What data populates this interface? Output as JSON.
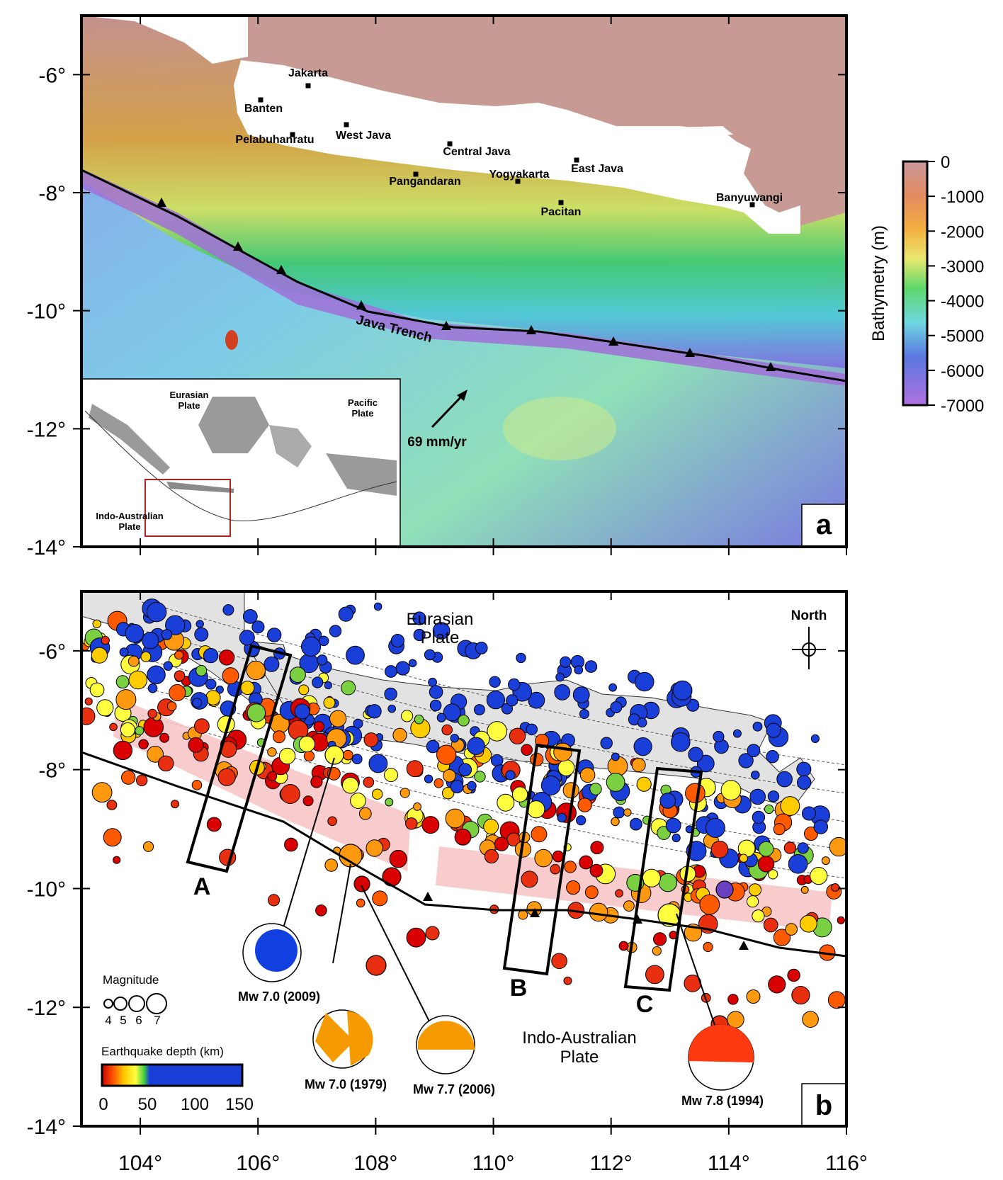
{
  "colors": {
    "land_bg": "#c89a94",
    "land_white": "#ffffff",
    "land_gray": "#e2e2e2",
    "trench_purple": "#a070d8",
    "shallow_red": "#cc2200",
    "deep_blue": "#1a3fd8",
    "pink_band": "#f7c3c3",
    "focal_orange": "#f59a00",
    "focal_red": "#ff3a10",
    "focal_blue": "#1240e0"
  },
  "axes": {
    "lon_ticks": [
      "104°",
      "106°",
      "108°",
      "110°",
      "112°",
      "114°",
      "116°"
    ],
    "lat_ticks_a": [
      "-6°",
      "-8°",
      "-10°",
      "-12°",
      "-14°"
    ],
    "lat_ticks_b": [
      "-6°",
      "-8°",
      "-10°",
      "-12°",
      "-14°"
    ],
    "lon_range": [
      103,
      116
    ],
    "lat_range_a": [
      -14,
      -5
    ],
    "lat_range_b": [
      -14,
      -5
    ]
  },
  "panel_a": {
    "label": "a",
    "cities": [
      {
        "name": "Jakarta"
      },
      {
        "name": "Banten"
      },
      {
        "name": "West Java"
      },
      {
        "name": "Pelabuhanratu"
      },
      {
        "name": "Central Java"
      },
      {
        "name": "Pangandaran"
      },
      {
        "name": "Yogyakarta"
      },
      {
        "name": "East Java"
      },
      {
        "name": "Pacitan"
      },
      {
        "name": "Banyuwangi"
      }
    ],
    "trench_label": "Java Trench",
    "velocity_label": "69 mm/yr",
    "inset": {
      "eurasian": [
        "Eurasian",
        "Plate"
      ],
      "pacific": [
        "Pacific",
        "Plate"
      ],
      "indo": [
        "Indo-Australian",
        "Plate"
      ]
    },
    "colorbar": {
      "title": "Bathymetry (m)",
      "ticks": [
        "0",
        "-1000",
        "-2000",
        "-3000",
        "-4000",
        "-5000",
        "-6000",
        "-7000"
      ]
    }
  },
  "panel_b": {
    "label": "b",
    "eurasian": [
      "Eurasian",
      "Plate"
    ],
    "indo": [
      "Indo-Australian",
      "Plate"
    ],
    "north_label": "North",
    "box_labels": [
      "A",
      "B",
      "C"
    ],
    "focal": [
      {
        "label": "Mw 7.0 (2009)"
      },
      {
        "label": "Mw 7.0 (1979)"
      },
      {
        "label": "Mw 7.7 (2006)"
      },
      {
        "label": "Mw 7.8 (1994)"
      }
    ],
    "magnitude_legend": {
      "title": "Magnitude",
      "values": [
        "4",
        "5",
        "6",
        "7"
      ]
    },
    "depth_legend": {
      "title": "Earthquake depth (km)",
      "ticks": [
        "0",
        "50",
        "100",
        "150"
      ]
    }
  }
}
